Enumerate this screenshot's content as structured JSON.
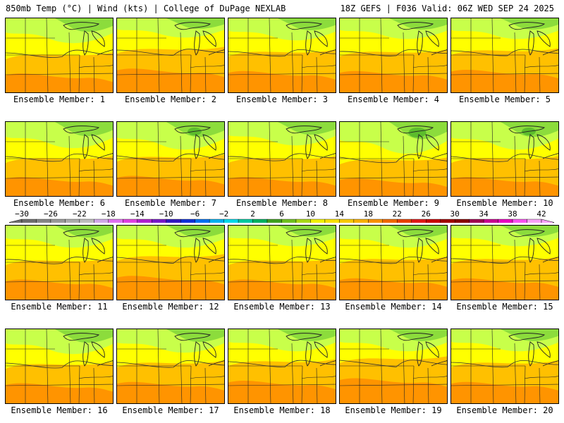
{
  "header": {
    "left_title": "850mb Temp (°C) | Wind (kts) | College of DuPage NEXLAB",
    "right_title": "18Z GEFS | F036 Valid: 06Z WED SEP 24 2025"
  },
  "members": [
    {
      "label": "Ensemble Member: 1",
      "heat": 0.55,
      "cool": 0.45
    },
    {
      "label": "Ensemble Member: 2",
      "heat": 0.75,
      "cool": 0.25
    },
    {
      "label": "Ensemble Member: 3",
      "heat": 0.65,
      "cool": 0.35
    },
    {
      "label": "Ensemble Member: 4",
      "heat": 0.65,
      "cool": 0.3
    },
    {
      "label": "Ensemble Member: 5",
      "heat": 0.7,
      "cool": 0.3
    },
    {
      "label": "Ensemble Member: 6",
      "heat": 0.55,
      "cool": 0.5
    },
    {
      "label": "Ensemble Member: 7",
      "heat": 0.6,
      "cool": 0.55
    },
    {
      "label": "Ensemble Member: 8",
      "heat": 0.55,
      "cool": 0.4
    },
    {
      "label": "Ensemble Member: 9",
      "heat": 0.5,
      "cool": 0.7
    },
    {
      "label": "Ensemble Member: 10",
      "heat": 0.55,
      "cool": 0.55
    },
    {
      "label": "Ensemble Member: 11",
      "heat": 0.6,
      "cool": 0.35
    },
    {
      "label": "Ensemble Member: 12",
      "heat": 0.75,
      "cool": 0.35
    },
    {
      "label": "Ensemble Member: 13",
      "heat": 0.6,
      "cool": 0.3
    },
    {
      "label": "Ensemble Member: 14",
      "heat": 0.65,
      "cool": 0.35
    },
    {
      "label": "Ensemble Member: 15",
      "heat": 0.65,
      "cool": 0.3
    },
    {
      "label": "Ensemble Member: 16",
      "heat": 0.6,
      "cool": 0.45
    },
    {
      "label": "Ensemble Member: 17",
      "heat": 0.65,
      "cool": 0.4
    },
    {
      "label": "Ensemble Member: 18",
      "heat": 0.7,
      "cool": 0.35
    },
    {
      "label": "Ensemble Member: 19",
      "heat": 0.8,
      "cool": 0.35
    },
    {
      "label": "Ensemble Member: 20",
      "heat": 0.65,
      "cool": 0.35
    }
  ],
  "colorbar": {
    "min": -30,
    "max": 42,
    "step": 2,
    "tick_labels": [
      "-30",
      "-26",
      "-22",
      "-18",
      "-14",
      "-10",
      "-6",
      "-2",
      "2",
      "6",
      "10",
      "14",
      "18",
      "22",
      "26",
      "30",
      "34",
      "38",
      "42"
    ],
    "colors": [
      "#6f6f6f",
      "#878787",
      "#9a9a9a",
      "#acacac",
      "#bdbdbd",
      "#d1a8e8",
      "#e070f0",
      "#e040e0",
      "#b020d0",
      "#7818c8",
      "#3018c0",
      "#1030d8",
      "#0070f0",
      "#00b0f0",
      "#00d8e8",
      "#00c8a0",
      "#00b060",
      "#40a020",
      "#70c020",
      "#a8d818",
      "#f0f000",
      "#f8e000",
      "#f8c800",
      "#f8b000",
      "#f89000",
      "#f06800",
      "#e84000",
      "#e01818",
      "#c80000",
      "#a00000",
      "#880000",
      "#a00050",
      "#c80090",
      "#e800c0",
      "#f850f0",
      "#f8a0f8"
    ]
  },
  "map_colors": {
    "hot": "#ff8c00",
    "warm": "#ffc000",
    "mild": "#ffff00",
    "cool": "#c8ff4a",
    "cold": "#8cdc3c",
    "coldest": "#50b428",
    "border": "#222222"
  }
}
